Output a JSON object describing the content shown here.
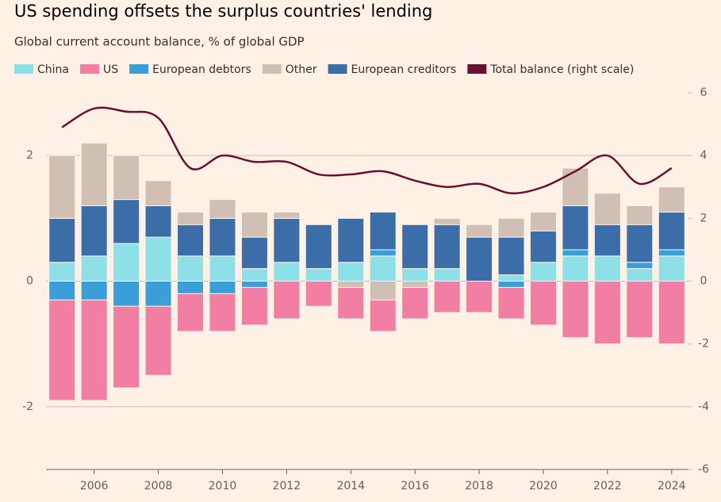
{
  "chart_data": {
    "type": "stacked_bar_line",
    "title": "US spending offsets the surplus countries' lending",
    "subtitle": "Global current account balance, % of global GDP",
    "x": [
      2005,
      2006,
      2007,
      2008,
      2009,
      2010,
      2011,
      2012,
      2013,
      2014,
      2015,
      2016,
      2017,
      2018,
      2019,
      2020,
      2021,
      2022,
      2023,
      2024
    ],
    "xlim": [
      2004.5,
      2024.5
    ],
    "xticks": [
      2006,
      2008,
      2010,
      2012,
      2014,
      2016,
      2018,
      2020,
      2022,
      2024
    ],
    "ylim": [
      -3,
      3
    ],
    "yticks": [
      -2,
      0,
      2
    ],
    "y2lim": [
      -6,
      6
    ],
    "y2ticks": [
      -6,
      -4,
      -2,
      0,
      2,
      4,
      6
    ],
    "grid": true,
    "stack_order": [
      0,
      2,
      4,
      3,
      1
    ],
    "series": [
      {
        "name": "China",
        "color": "#8ee0e8",
        "values": [
          0.3,
          0.4,
          0.6,
          0.7,
          0.4,
          0.4,
          0.2,
          0.3,
          0.2,
          0.3,
          0.4,
          0.2,
          0.2,
          0,
          0.1,
          0.3,
          0.4,
          0.4,
          0.2,
          0.4
        ]
      },
      {
        "name": "US",
        "color": "#f27ea3",
        "values": [
          -1.6,
          -1.6,
          -1.3,
          -1.1,
          -0.6,
          -0.6,
          -0.6,
          -0.6,
          -0.4,
          -0.5,
          -0.5,
          -0.5,
          -0.5,
          -0.5,
          -0.5,
          -0.7,
          -0.9,
          -1.0,
          -0.9,
          -1.0
        ]
      },
      {
        "name": "European debtors",
        "color": "#3a9fd8",
        "values": [
          -0.3,
          -0.3,
          -0.4,
          -0.4,
          -0.2,
          -0.2,
          -0.1,
          null,
          null,
          null,
          0.1,
          null,
          null,
          null,
          -0.1,
          null,
          0.1,
          null,
          0.1,
          0.1
        ]
      },
      {
        "name": "Other",
        "color": "#cfbfb4",
        "values": [
          1.0,
          1.0,
          0.7,
          0.4,
          0.2,
          0.3,
          0.4,
          0.1,
          null,
          -0.1,
          -0.3,
          -0.1,
          0.1,
          0.2,
          0.3,
          0.3,
          0.6,
          0.5,
          0.3,
          0.4
        ]
      },
      {
        "name": "European creditors",
        "color": "#3b6ea8",
        "values": [
          0.7,
          0.8,
          0.7,
          0.5,
          0.5,
          0.6,
          0.5,
          0.7,
          0.7,
          0.7,
          0.6,
          0.7,
          0.7,
          0.7,
          0.6,
          0.5,
          0.7,
          0.5,
          0.6,
          0.6
        ]
      },
      {
        "name": "Total balance (right scale)",
        "color": "#6d0e33",
        "axis": "y2",
        "values": [
          4.9,
          5.5,
          5.4,
          5.2,
          3.6,
          4.0,
          3.8,
          3.8,
          3.4,
          3.4,
          3.5,
          3.2,
          3.0,
          3.1,
          2.8,
          3.0,
          3.5,
          4.0,
          3.1,
          3.6
        ]
      }
    ]
  }
}
